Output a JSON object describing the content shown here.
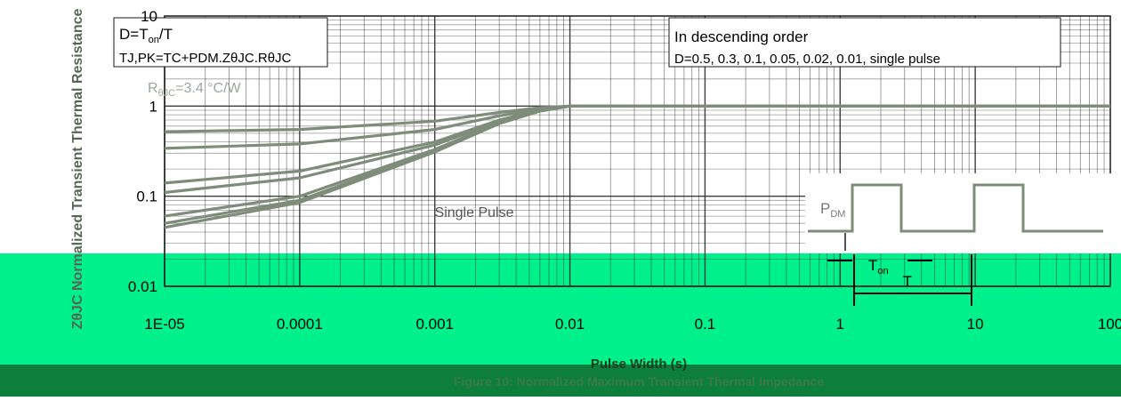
{
  "chart_data": {
    "type": "line",
    "title": "Figure 10: Normalized Maximum Transient Thermal Impedance",
    "xlabel": "Pulse Width (s)",
    "ylabel": "ZθJC Normalized Transient Thermal Resistance",
    "xscale": "log",
    "yscale": "log",
    "xlim": [
      1e-05,
      100
    ],
    "ylim": [
      0.01,
      10
    ],
    "x_ticks": [
      "1E-05",
      "0.0001",
      "0.001",
      "0.01",
      "0.1",
      "1",
      "10",
      "100"
    ],
    "y_ticks": [
      "0.01",
      "0.1",
      "1",
      "10"
    ],
    "grid": true,
    "series": [
      {
        "name": "0.5",
        "x": [
          1e-05,
          0.0001,
          0.001,
          0.003,
          0.006,
          0.01,
          0.1,
          1,
          10,
          100
        ],
        "y": [
          0.52,
          0.55,
          0.68,
          0.85,
          0.96,
          1.0,
          1.0,
          1.0,
          1.0,
          1.0
        ]
      },
      {
        "name": "0.3",
        "x": [
          1e-05,
          0.0001,
          0.001,
          0.003,
          0.006,
          0.01,
          0.1,
          1,
          10,
          100
        ],
        "y": [
          0.34,
          0.38,
          0.55,
          0.78,
          0.93,
          1.0,
          1.0,
          1.0,
          1.0,
          1.0
        ]
      },
      {
        "name": "0.1",
        "x": [
          1e-05,
          0.0001,
          0.001,
          0.003,
          0.006,
          0.01,
          0.1,
          1,
          10,
          100
        ],
        "y": [
          0.14,
          0.19,
          0.4,
          0.7,
          0.91,
          1.0,
          1.0,
          1.0,
          1.0,
          1.0
        ]
      },
      {
        "name": "0.05",
        "x": [
          1e-05,
          0.0001,
          0.001,
          0.003,
          0.006,
          0.01,
          0.1,
          1,
          10,
          100
        ],
        "y": [
          0.11,
          0.16,
          0.37,
          0.68,
          0.9,
          1.0,
          1.0,
          1.0,
          1.0,
          1.0
        ]
      },
      {
        "name": "0.02",
        "x": [
          1e-05,
          0.0001,
          0.001,
          0.003,
          0.006,
          0.01,
          0.1,
          1,
          10,
          100
        ],
        "y": [
          0.06,
          0.1,
          0.33,
          0.66,
          0.89,
          1.0,
          1.0,
          1.0,
          1.0,
          1.0
        ]
      },
      {
        "name": "0.01",
        "x": [
          1e-05,
          0.0001,
          0.001,
          0.003,
          0.006,
          0.01,
          0.1,
          1,
          10,
          100
        ],
        "y": [
          0.05,
          0.09,
          0.32,
          0.65,
          0.89,
          1.0,
          1.0,
          1.0,
          1.0,
          1.0
        ]
      },
      {
        "name": "single pulse",
        "x": [
          1e-05,
          0.0001,
          0.001,
          0.003,
          0.006,
          0.01,
          0.1,
          1,
          10,
          100
        ],
        "y": [
          0.045,
          0.085,
          0.31,
          0.64,
          0.88,
          1.0,
          1.0,
          1.0,
          1.0,
          1.0
        ]
      }
    ],
    "annotations": {
      "duty_formula": [
        "D=T",
        "on",
        "/T"
      ],
      "tj_formula": "TJ,PK=TC+PDM.ZθJC.RθJC",
      "rth_value": [
        "R",
        "θJC",
        "=3.4 °C/W"
      ],
      "order_title": "In descending order",
      "order_list": "D=0.5, 0.3, 0.1, 0.05, 0.02, 0.01, single pulse",
      "single_pulse_label": "Single Pulse",
      "pdm_label": [
        "P",
        "DM"
      ],
      "ton_label": [
        "T",
        "on"
      ],
      "t_label": "T"
    },
    "colors": {
      "curve": "#7e8c7a",
      "grid": "#2a2a2a",
      "band_green": "#00f08c",
      "band_dark": "#0e7e3c"
    }
  }
}
